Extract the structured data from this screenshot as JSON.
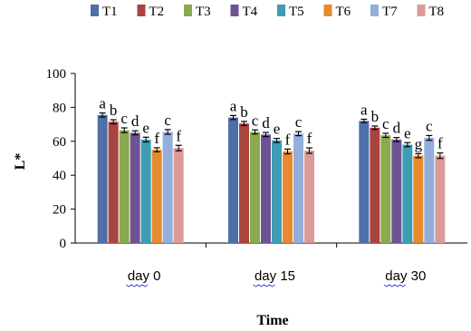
{
  "chart_data": {
    "type": "bar",
    "title": "",
    "xlabel": "Time",
    "ylabel": "L*",
    "ylim": [
      0,
      100
    ],
    "yticks": [
      "0",
      "20",
      "40",
      "60",
      "80",
      "100"
    ],
    "grid": false,
    "legend_position": "top",
    "categories": [
      "day 0",
      "day 15",
      "day 30"
    ],
    "series": [
      {
        "name": "T1",
        "color": "#4F6FA8",
        "values": [
          75.5,
          74.0,
          72.0
        ],
        "errors": [
          1.2,
          1.2,
          1.0
        ],
        "letters": [
          "a",
          "a",
          "a"
        ]
      },
      {
        "name": "T2",
        "color": "#A8453F",
        "values": [
          71.5,
          70.5,
          68.0
        ],
        "errors": [
          1.2,
          1.2,
          1.0
        ],
        "letters": [
          "b",
          "b",
          "b"
        ]
      },
      {
        "name": "T3",
        "color": "#8AAA4E",
        "values": [
          66.5,
          65.5,
          63.5
        ],
        "errors": [
          1.4,
          1.2,
          1.2
        ],
        "letters": [
          "c",
          "c",
          "c"
        ]
      },
      {
        "name": "T4",
        "color": "#6E5394",
        "values": [
          65.0,
          64.0,
          61.0
        ],
        "errors": [
          1.2,
          1.2,
          1.2
        ],
        "letters": [
          "d",
          "d",
          "d"
        ]
      },
      {
        "name": "T5",
        "color": "#3E9DB3",
        "values": [
          61.0,
          60.5,
          58.0
        ],
        "errors": [
          1.4,
          1.2,
          1.2
        ],
        "letters": [
          "e",
          "e",
          "e"
        ]
      },
      {
        "name": "T6",
        "color": "#E58A2E",
        "values": [
          55.0,
          54.0,
          51.5
        ],
        "errors": [
          1.2,
          1.4,
          1.2
        ],
        "letters": [
          "f",
          "f",
          "g"
        ]
      },
      {
        "name": "T7",
        "color": "#93AEDA",
        "values": [
          65.5,
          64.5,
          62.0
        ],
        "errors": [
          1.4,
          1.2,
          1.4
        ],
        "letters": [
          "c",
          "c",
          "c"
        ]
      },
      {
        "name": "T8",
        "color": "#DB9A98",
        "values": [
          56.0,
          54.5,
          51.5
        ],
        "errors": [
          1.6,
          1.6,
          1.6
        ],
        "letters": [
          "f",
          "f",
          "f"
        ]
      }
    ]
  }
}
